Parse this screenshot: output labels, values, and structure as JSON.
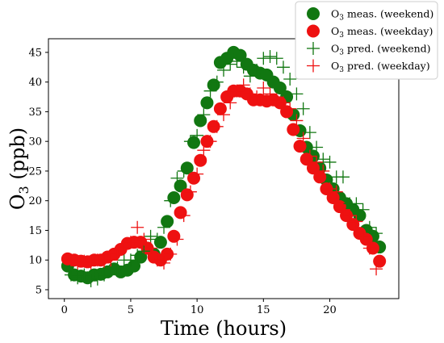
{
  "chart_data": {
    "type": "scatter",
    "title": "",
    "xlabel": "Time (hours)",
    "ylabel": "O3 (ppb)",
    "ylabel_parts": {
      "base": "O",
      "sub": "3",
      "rest": " (ppb)"
    },
    "xlim": [
      -1.2,
      25.2
    ],
    "ylim": [
      3.5,
      47.3
    ],
    "xticks": [
      0,
      5,
      10,
      15,
      20
    ],
    "yticks": [
      5,
      10,
      15,
      20,
      25,
      30,
      35,
      40,
      45
    ],
    "grid": false,
    "legend_position": "top-right",
    "colors": {
      "weekend": "#117711",
      "weekday": "#ee1111",
      "axis": "#000000"
    },
    "series": [
      {
        "name": "O3 meas. (weekend)",
        "label_parts": {
          "base": "O",
          "sub": "3",
          "rest": " meas. (weekend)"
        },
        "marker": "circle",
        "color": "#117711",
        "x": [
          0.25,
          0.75,
          1.25,
          1.75,
          2.25,
          2.75,
          3.25,
          3.75,
          4.25,
          4.75,
          5.25,
          5.75,
          6.25,
          6.75,
          7.25,
          7.75,
          8.25,
          8.75,
          9.25,
          9.75,
          10.25,
          10.75,
          11.25,
          11.75,
          12.25,
          12.75,
          13.25,
          13.75,
          14.25,
          14.75,
          15.25,
          15.75,
          16.25,
          16.75,
          17.25,
          17.75,
          18.25,
          18.75,
          19.25,
          19.75,
          20.25,
          20.75,
          21.25,
          21.75,
          22.25,
          22.75,
          23.25,
          23.75
        ],
        "y": [
          9.0,
          7.5,
          7.3,
          7.0,
          7.5,
          7.6,
          8.0,
          8.5,
          8.0,
          8.3,
          9.0,
          10.5,
          12.0,
          11.0,
          13.0,
          16.5,
          20.5,
          22.5,
          25.5,
          29.8,
          33.5,
          36.5,
          39.5,
          43.3,
          44.0,
          45.0,
          44.5,
          43.0,
          42.0,
          41.5,
          41.2,
          40.0,
          39.0,
          37.5,
          34.5,
          31.8,
          29.0,
          27.5,
          25.5,
          23.5,
          22.0,
          20.5,
          19.5,
          18.5,
          17.5,
          15.0,
          14.0,
          12.2
        ]
      },
      {
        "name": "O3 meas. (weekday)",
        "label_parts": {
          "base": "O",
          "sub": "3",
          "rest": " meas. (weekday)"
        },
        "marker": "circle",
        "color": "#ee1111",
        "x": [
          0.25,
          0.75,
          1.25,
          1.75,
          2.25,
          2.75,
          3.25,
          3.75,
          4.25,
          4.75,
          5.25,
          5.75,
          6.25,
          6.75,
          7.25,
          7.75,
          8.25,
          8.75,
          9.25,
          9.75,
          10.25,
          10.75,
          11.25,
          11.75,
          12.25,
          12.75,
          13.25,
          13.75,
          14.25,
          14.75,
          15.25,
          15.75,
          16.25,
          16.75,
          17.25,
          17.75,
          18.25,
          18.75,
          19.25,
          19.75,
          20.25,
          20.75,
          21.25,
          21.75,
          22.25,
          22.75,
          23.25,
          23.75
        ],
        "y": [
          10.2,
          10.0,
          9.8,
          9.7,
          10.0,
          10.0,
          10.5,
          11.0,
          11.8,
          12.8,
          13.0,
          13.0,
          12.0,
          10.5,
          10.0,
          11.0,
          14.0,
          18.0,
          21.0,
          23.8,
          26.8,
          30.0,
          32.5,
          35.5,
          37.5,
          38.5,
          38.5,
          38.0,
          37.0,
          37.0,
          36.8,
          37.0,
          36.5,
          35.0,
          32.0,
          29.2,
          27.0,
          25.5,
          24.0,
          22.0,
          20.5,
          19.0,
          17.5,
          16.0,
          14.5,
          13.5,
          12.0,
          9.8
        ]
      },
      {
        "name": "O3 pred. (weekend)",
        "label_parts": {
          "base": "O",
          "sub": "3",
          "rest": " pred. (weekend)"
        },
        "marker": "plus",
        "color": "#117711",
        "x": [
          0.5,
          1.0,
          1.5,
          2.0,
          2.5,
          3.0,
          3.5,
          4.0,
          4.5,
          5.0,
          5.5,
          6.0,
          6.5,
          7.0,
          7.5,
          8.0,
          8.5,
          9.0,
          9.5,
          10.0,
          10.5,
          11.0,
          11.5,
          12.0,
          12.5,
          13.0,
          13.5,
          14.0,
          14.5,
          15.0,
          15.5,
          16.0,
          16.5,
          17.0,
          17.5,
          18.0,
          18.5,
          19.0,
          19.5,
          20.0,
          20.5,
          21.0,
          21.5,
          22.0,
          22.5,
          23.0,
          23.5
        ],
        "y": [
          7.5,
          7.0,
          7.5,
          6.5,
          6.8,
          7.5,
          8.5,
          8.7,
          10.0,
          10.0,
          10.8,
          11.5,
          14.0,
          13.5,
          15.5,
          20.0,
          23.8,
          25.0,
          30.0,
          31.0,
          34.5,
          38.5,
          40.0,
          42.0,
          43.0,
          43.5,
          42.5,
          41.0,
          42.0,
          44.0,
          44.3,
          44.0,
          42.5,
          40.5,
          38.0,
          35.5,
          31.5,
          29.0,
          27.0,
          26.5,
          24.0,
          24.0,
          19.5,
          19.5,
          18.5,
          15.5,
          14.5
        ]
      },
      {
        "name": "O3 pred. (weekday)",
        "label_parts": {
          "base": "O",
          "sub": "3",
          "rest": " pred. (weekday)"
        },
        "marker": "plus",
        "color": "#ee1111",
        "x": [
          0.5,
          1.0,
          1.5,
          2.0,
          2.5,
          3.0,
          3.5,
          4.0,
          4.5,
          5.0,
          5.5,
          6.0,
          6.5,
          7.0,
          7.5,
          8.0,
          8.5,
          9.0,
          9.5,
          10.0,
          10.5,
          11.0,
          11.5,
          12.0,
          12.5,
          13.0,
          13.5,
          14.0,
          14.5,
          15.0,
          15.5,
          16.0,
          16.5,
          17.0,
          17.5,
          18.0,
          18.5,
          19.0,
          19.5,
          20.0,
          20.5,
          21.0,
          21.5,
          22.0,
          22.5,
          23.0,
          23.5
        ],
        "y": [
          10.0,
          9.5,
          9.8,
          9.5,
          10.0,
          9.8,
          10.0,
          11.0,
          12.0,
          13.0,
          15.5,
          13.5,
          12.0,
          10.0,
          9.5,
          11.0,
          13.5,
          17.5,
          21.5,
          24.5,
          28.5,
          30.0,
          32.5,
          34.5,
          36.5,
          38.5,
          39.5,
          38.0,
          37.5,
          39.0,
          38.0,
          37.0,
          36.5,
          35.5,
          33.5,
          30.5,
          27.5,
          26.5,
          25.0,
          22.0,
          21.5,
          18.5,
          17.5,
          16.5,
          14.0,
          12.0,
          8.5
        ]
      }
    ]
  }
}
